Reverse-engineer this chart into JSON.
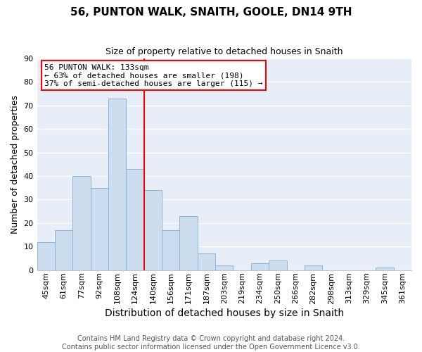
{
  "title": "56, PUNTON WALK, SNAITH, GOOLE, DN14 9TH",
  "subtitle": "Size of property relative to detached houses in Snaith",
  "xlabel": "Distribution of detached houses by size in Snaith",
  "ylabel": "Number of detached properties",
  "bar_labels": [
    "45sqm",
    "61sqm",
    "77sqm",
    "92sqm",
    "108sqm",
    "124sqm",
    "140sqm",
    "156sqm",
    "171sqm",
    "187sqm",
    "203sqm",
    "219sqm",
    "234sqm",
    "250sqm",
    "266sqm",
    "282sqm",
    "298sqm",
    "313sqm",
    "329sqm",
    "345sqm",
    "361sqm"
  ],
  "bar_values": [
    12,
    17,
    40,
    35,
    73,
    43,
    34,
    17,
    23,
    7,
    2,
    0,
    3,
    4,
    0,
    2,
    0,
    0,
    0,
    1,
    0
  ],
  "bar_color": "#ccddf0",
  "bar_edgecolor": "#8ab4d8",
  "vline_x": 5.5,
  "vline_color": "red",
  "ylim": [
    0,
    90
  ],
  "yticks": [
    0,
    10,
    20,
    30,
    40,
    50,
    60,
    70,
    80,
    90
  ],
  "annotation_title": "56 PUNTON WALK: 133sqm",
  "annotation_line1": "← 63% of detached houses are smaller (198)",
  "annotation_line2": "37% of semi-detached houses are larger (115) →",
  "annotation_box_edgecolor": "red",
  "footer1": "Contains HM Land Registry data © Crown copyright and database right 2024.",
  "footer2": "Contains public sector information licensed under the Open Government Licence v3.0.",
  "background_color": "#ffffff",
  "plot_background": "#e8eef8",
  "grid_color": "#ffffff",
  "title_fontsize": 11,
  "subtitle_fontsize": 9,
  "xlabel_fontsize": 10,
  "ylabel_fontsize": 9,
  "tick_fontsize": 8,
  "annotation_fontsize": 8,
  "footer_fontsize": 7
}
